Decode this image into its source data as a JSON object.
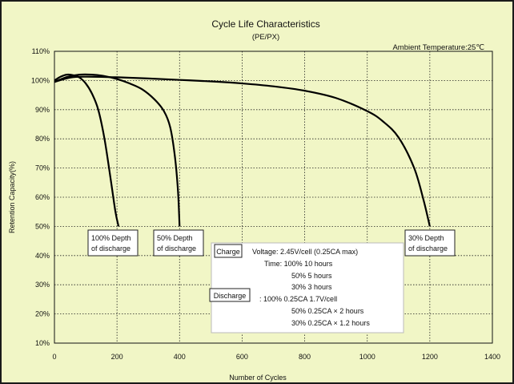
{
  "chart_data": {
    "type": "line",
    "title": "Cycle Life Characteristics",
    "subtitle": "(PE/PX)",
    "annotation": "Ambient Temperature:25℃",
    "xlabel": "Number of Cycles",
    "ylabel": "Retention Capacity(%)",
    "xlim": [
      0,
      1400
    ],
    "ylim": [
      10,
      110
    ],
    "xticks": [
      0,
      200,
      400,
      600,
      800,
      1000,
      1200,
      1400
    ],
    "yticks": [
      10,
      20,
      30,
      40,
      50,
      60,
      70,
      80,
      90,
      100,
      110
    ],
    "ytick_labels": [
      "10%",
      "20%",
      "30%",
      "40%",
      "50%",
      "60%",
      "70%",
      "80%",
      "90%",
      "100%",
      "110%"
    ],
    "grid": true,
    "series": [
      {
        "name": "100% Depth of discharge",
        "x": [
          0,
          20,
          40,
          60,
          80,
          100,
          120,
          140,
          160,
          180,
          195,
          205
        ],
        "y": [
          100,
          101.3,
          102,
          101.8,
          101,
          99,
          95.5,
          90,
          80,
          66,
          55,
          50
        ]
      },
      {
        "name": "50% Depth of discharge",
        "x": [
          0,
          40,
          80,
          120,
          160,
          200,
          240,
          280,
          320,
          350,
          370,
          385,
          395,
          400
        ],
        "y": [
          99.5,
          101.2,
          102,
          102,
          101.5,
          100.5,
          99,
          97,
          93.5,
          89.5,
          84,
          74,
          62,
          50
        ]
      },
      {
        "name": "30% Depth of discharge",
        "x": [
          0,
          50,
          100,
          200,
          300,
          400,
          500,
          600,
          700,
          800,
          900,
          1000,
          1050,
          1100,
          1150,
          1180,
          1200
        ],
        "y": [
          99.5,
          101,
          101.3,
          101.1,
          100.7,
          100.2,
          99.7,
          99,
          98,
          96.5,
          94,
          89.5,
          86,
          80.5,
          70,
          59,
          50
        ]
      }
    ],
    "conditions": {
      "charge_label": "Charge",
      "discharge_label": "Discharge",
      "lines": [
        "Voltage: 2.45V/cell (0.25CA max)",
        "Time: 100%   10 hours",
        "50%      5 hours",
        "30%      3 hours",
        ": 100%   0.25CA 1.7V/cell",
        "50%   0.25CA × 2 hours",
        "30%   0.25CA × 1.2 hours"
      ]
    }
  }
}
